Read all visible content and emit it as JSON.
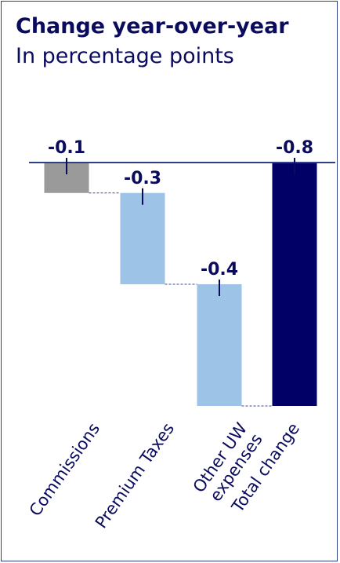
{
  "chart_data": {
    "type": "bar",
    "title": "Change year-over-year",
    "subtitle": "In percentage points",
    "categories": [
      [
        "Commissions"
      ],
      [
        "Premium Taxes"
      ],
      [
        "Other UW",
        "expenses"
      ],
      [
        "Total change"
      ]
    ],
    "values": [
      -0.1,
      -0.3,
      -0.4,
      -0.8
    ],
    "value_labels": [
      "-0.1",
      "-0.3",
      "-0.4",
      "-0.8"
    ],
    "waterfall": true,
    "ylim": [
      -0.8,
      0
    ],
    "grid": false,
    "colors": [
      "#9a9a9a",
      "#9dc3e6",
      "#9dc3e6",
      "#000066"
    ],
    "connector_color": "#3a4a9a",
    "axis_color": "#2f3f86"
  }
}
